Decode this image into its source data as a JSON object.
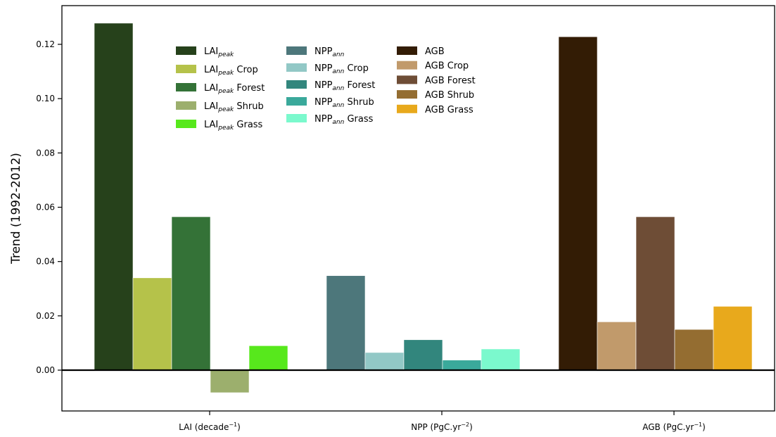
{
  "chart_data": {
    "type": "bar",
    "ylabel": "Trend (1992-2012)",
    "ylim": [
      -0.015,
      0.135
    ],
    "yticks": [
      "0.00",
      "0.02",
      "0.04",
      "0.06",
      "0.08",
      "0.10",
      "0.12"
    ],
    "ytick_values": [
      0.0,
      0.02,
      0.04,
      0.06,
      0.08,
      0.1,
      0.12
    ],
    "grid": false,
    "legend_placement": "top-center",
    "categories": [
      {
        "label": "LAI (decade",
        "sup": "−1",
        "close": ")"
      },
      {
        "label": "NPP (PgC.yr",
        "sup": "−2",
        "close": ")"
      },
      {
        "label": "AGB (PgC.yr",
        "sup": "−1",
        "close": ")"
      }
    ],
    "groups": [
      {
        "bars": [
          {
            "base": "LAI",
            "sub": "peak",
            "rest": "",
            "value": 0.1278,
            "color": "#26411b"
          },
          {
            "base": "LAI",
            "sub": "peak",
            "rest": " Crop",
            "value": 0.034,
            "color": "#b5c24a"
          },
          {
            "base": "LAI",
            "sub": "peak",
            "rest": " Forest",
            "value": 0.0565,
            "color": "#347237"
          },
          {
            "base": "LAI",
            "sub": "peak",
            "rest": " Shrub",
            "value": -0.0083,
            "color": "#9caf6d"
          },
          {
            "base": "LAI",
            "sub": "peak",
            "rest": " Grass",
            "value": 0.009,
            "color": "#57e81c"
          }
        ]
      },
      {
        "bars": [
          {
            "base": "NPP",
            "sub": "ann",
            "rest": "",
            "value": 0.0348,
            "color": "#4d777b"
          },
          {
            "base": "NPP",
            "sub": "ann",
            "rest": " Crop",
            "value": 0.0065,
            "color": "#92c8c6"
          },
          {
            "base": "NPP",
            "sub": "ann",
            "rest": " Forest",
            "value": 0.0112,
            "color": "#32867d"
          },
          {
            "base": "NPP",
            "sub": "ann",
            "rest": " Shrub",
            "value": 0.0037,
            "color": "#3aa99b"
          },
          {
            "base": "NPP",
            "sub": "ann",
            "rest": " Grass",
            "value": 0.0078,
            "color": "#7bf9cd"
          }
        ]
      },
      {
        "bars": [
          {
            "base": "AGB",
            "sub": "",
            "rest": "",
            "value": 0.1228,
            "color": "#331c05"
          },
          {
            "base": "AGB",
            "sub": "",
            "rest": " Crop",
            "value": 0.0178,
            "color": "#c19a6b"
          },
          {
            "base": "AGB",
            "sub": "",
            "rest": " Forest",
            "value": 0.0565,
            "color": "#6e4d36"
          },
          {
            "base": "AGB",
            "sub": "",
            "rest": " Shrub",
            "value": 0.015,
            "color": "#946d31"
          },
          {
            "base": "AGB",
            "sub": "",
            "rest": " Grass",
            "value": 0.0235,
            "color": "#e8a91c"
          }
        ]
      }
    ]
  }
}
